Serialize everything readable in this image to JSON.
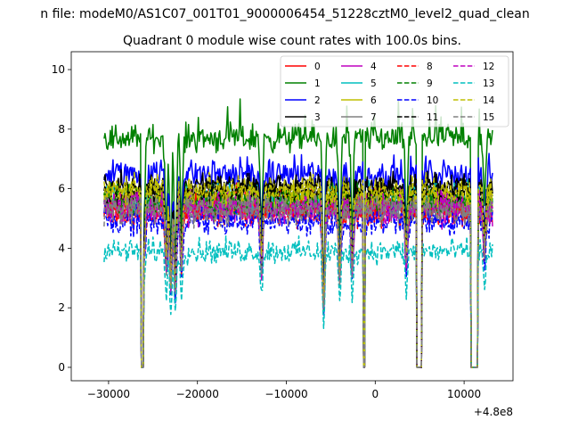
{
  "chart_data": {
    "type": "line",
    "suptitle": "n file: modeM0/AS1C07_001T01_9000006454_51228cztM0_level2_quad_clean",
    "title": "Quadrant 0 module wise count rates with 100.0s bins.",
    "xlabel": "",
    "ylabel": "",
    "x_offset_label": "+4.8e8",
    "xlim": [
      -34200,
      15500
    ],
    "ylim": [
      -0.45,
      10.6
    ],
    "x_data_range": [
      -30500,
      13200
    ],
    "bin_width": 100,
    "xticks": [
      -30000,
      -20000,
      -10000,
      0,
      10000
    ],
    "xtick_labels": [
      "−30000",
      "−20000",
      "−10000",
      "0",
      "10000"
    ],
    "yticks": [
      0,
      2,
      4,
      6,
      8,
      10
    ],
    "ytick_labels": [
      "0",
      "2",
      "4",
      "6",
      "8",
      "10"
    ],
    "gaps_zero_count": [
      [
        -26300,
        -26050
      ],
      [
        -1300,
        -1150
      ],
      [
        4700,
        5250
      ],
      [
        10800,
        11500
      ]
    ],
    "dips": [
      {
        "x": -26000,
        "factor": 0.7
      },
      {
        "x": -23500,
        "factor": 0.62
      },
      {
        "x": -23000,
        "factor": 0.5
      },
      {
        "x": -22500,
        "factor": 0.45
      },
      {
        "x": -21800,
        "factor": 0.62
      },
      {
        "x": -12800,
        "factor": 0.62
      },
      {
        "x": -5800,
        "factor": 0.35
      },
      {
        "x": -4000,
        "factor": 0.55
      },
      {
        "x": -2600,
        "factor": 0.6
      },
      {
        "x": 3500,
        "factor": 0.62
      },
      {
        "x": 12300,
        "factor": 0.7
      }
    ],
    "legend_position": "top-right",
    "series": [
      {
        "name": "0",
        "color": "#ff0000",
        "dash": "solid",
        "mean": 5.5,
        "noise": 0.45
      },
      {
        "name": "1",
        "color": "#008000",
        "dash": "solid",
        "mean": 7.7,
        "noise": 0.4
      },
      {
        "name": "2",
        "color": "#0000ff",
        "dash": "solid",
        "mean": 6.5,
        "noise": 0.45
      },
      {
        "name": "3",
        "color": "#000000",
        "dash": "solid",
        "mean": 6.1,
        "noise": 0.35
      },
      {
        "name": "4",
        "color": "#bf00bf",
        "dash": "solid",
        "mean": 5.3,
        "noise": 0.45
      },
      {
        "name": "5",
        "color": "#00bfbf",
        "dash": "solid",
        "mean": 5.6,
        "noise": 0.45
      },
      {
        "name": "6",
        "color": "#bfbf00",
        "dash": "solid",
        "mean": 5.7,
        "noise": 0.45
      },
      {
        "name": "7",
        "color": "#808080",
        "dash": "solid",
        "mean": 5.4,
        "noise": 0.45
      },
      {
        "name": "8",
        "color": "#ff0000",
        "dash": "dashed",
        "mean": 5.2,
        "noise": 0.45
      },
      {
        "name": "9",
        "color": "#008000",
        "dash": "dashed",
        "mean": 5.6,
        "noise": 0.45
      },
      {
        "name": "10",
        "color": "#0000ff",
        "dash": "dashed",
        "mean": 4.9,
        "noise": 0.4
      },
      {
        "name": "11",
        "color": "#000000",
        "dash": "dashed",
        "mean": 5.9,
        "noise": 0.4
      },
      {
        "name": "12",
        "color": "#bf00bf",
        "dash": "dashed",
        "mean": 5.4,
        "noise": 0.45
      },
      {
        "name": "13",
        "color": "#00bfbf",
        "dash": "dashed",
        "mean": 3.9,
        "noise": 0.35
      },
      {
        "name": "14",
        "color": "#bfbf00",
        "dash": "dashed",
        "mean": 5.9,
        "noise": 0.45
      },
      {
        "name": "15",
        "color": "#808080",
        "dash": "dashed",
        "mean": 5.3,
        "noise": 0.45
      }
    ]
  }
}
